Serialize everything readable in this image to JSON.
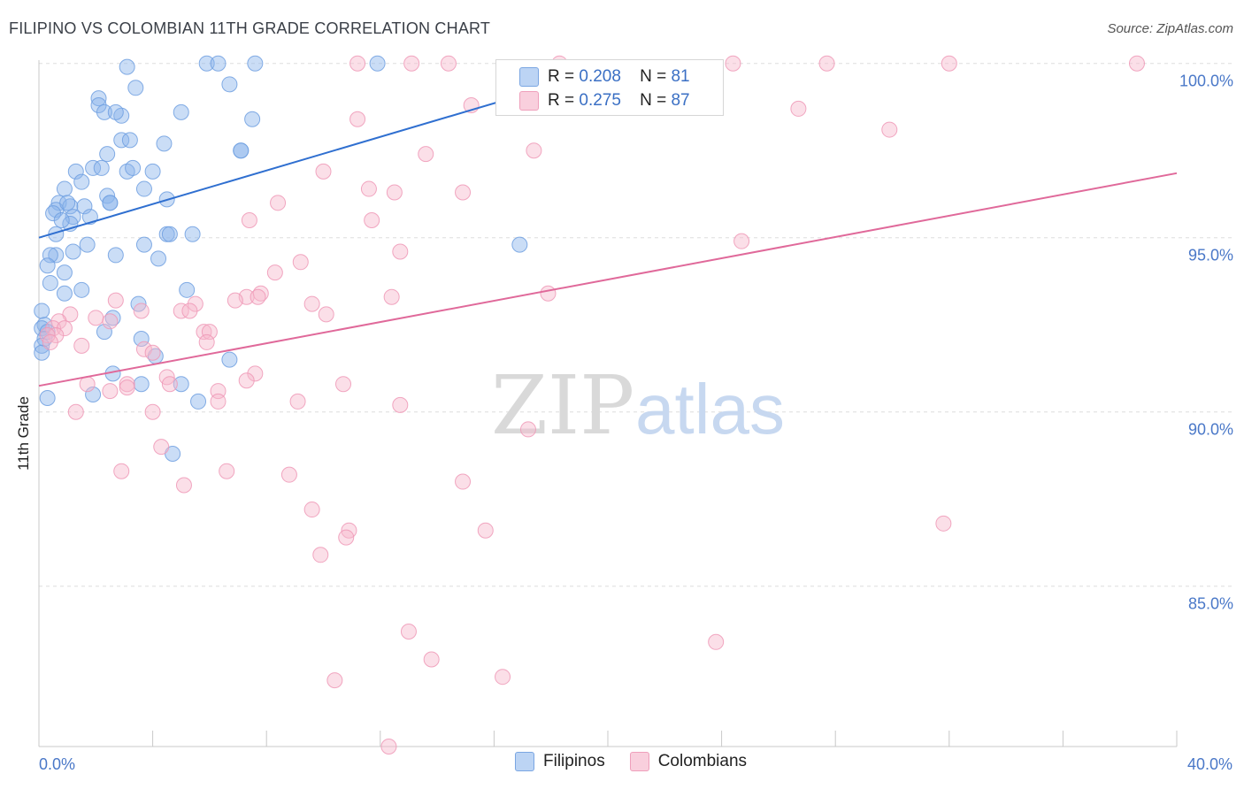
{
  "title": "FILIPINO VS COLOMBIAN 11TH GRADE CORRELATION CHART",
  "source": "Source: ZipAtlas.com",
  "watermark": {
    "zip": "ZIP",
    "atlas": "atlas"
  },
  "legend_top": {
    "rows": [
      {
        "r_label": "R =",
        "r_value": "0.208",
        "n_label": "N =",
        "n_value": "81"
      },
      {
        "r_label": "R =",
        "r_value": "0.275",
        "n_label": "N =",
        "n_value": "87"
      }
    ]
  },
  "chart_data": {
    "type": "scatter",
    "title": "FILIPINO VS COLOMBIAN 11TH GRADE CORRELATION CHART",
    "xlabel": "",
    "ylabel": "11th Grade",
    "xlim": [
      0,
      40
    ],
    "ylim": [
      80.4,
      100.5
    ],
    "x_tick_labels": [
      {
        "value": 0,
        "label": "0.0%"
      },
      {
        "value": 40,
        "label": "40.0%"
      }
    ],
    "y_ticks": [
      {
        "value": 100,
        "label": "100.0%"
      },
      {
        "value": 95,
        "label": "95.0%"
      },
      {
        "value": 90,
        "label": "90.0%"
      },
      {
        "value": 85,
        "label": "85.0%"
      }
    ],
    "grid": true,
    "legend_position": "top-center",
    "series": [
      {
        "name": "Filipinos",
        "color": "#8ab4ea",
        "stroke": "#6f9fe0",
        "line_color": "#2f6fd0",
        "trend": {
          "x": [
            0,
            19.5
          ],
          "y": [
            95.0,
            99.7
          ]
        },
        "points": [
          [
            3.1,
            99.9
          ],
          [
            5.9,
            100.0
          ],
          [
            7.6,
            100.0
          ],
          [
            11.9,
            100.0
          ],
          [
            3.4,
            99.3
          ],
          [
            6.7,
            99.4
          ],
          [
            2.1,
            99.0
          ],
          [
            2.1,
            98.8
          ],
          [
            2.3,
            98.6
          ],
          [
            5.0,
            98.6
          ],
          [
            7.5,
            98.4
          ],
          [
            2.9,
            98.5
          ],
          [
            2.9,
            97.8
          ],
          [
            3.2,
            97.8
          ],
          [
            4.4,
            97.7
          ],
          [
            7.1,
            97.5
          ],
          [
            1.9,
            97.0
          ],
          [
            2.2,
            97.0
          ],
          [
            3.1,
            96.9
          ],
          [
            4.0,
            96.9
          ],
          [
            1.3,
            96.9
          ],
          [
            2.4,
            97.4
          ],
          [
            1.5,
            96.6
          ],
          [
            0.9,
            96.4
          ],
          [
            3.7,
            96.4
          ],
          [
            2.4,
            96.2
          ],
          [
            2.5,
            96.0
          ],
          [
            4.5,
            96.1
          ],
          [
            0.7,
            96.0
          ],
          [
            1.1,
            95.9
          ],
          [
            1.6,
            95.9
          ],
          [
            0.6,
            95.8
          ],
          [
            0.5,
            95.7
          ],
          [
            1.2,
            95.6
          ],
          [
            1.8,
            95.6
          ],
          [
            1.1,
            95.4
          ],
          [
            0.6,
            95.1
          ],
          [
            4.5,
            95.1
          ],
          [
            5.4,
            95.1
          ],
          [
            3.7,
            94.8
          ],
          [
            1.7,
            94.8
          ],
          [
            1.2,
            94.6
          ],
          [
            0.6,
            94.5
          ],
          [
            2.7,
            94.5
          ],
          [
            4.2,
            94.4
          ],
          [
            0.4,
            94.5
          ],
          [
            0.3,
            94.2
          ],
          [
            0.9,
            94.0
          ],
          [
            0.4,
            93.7
          ],
          [
            1.5,
            93.5
          ],
          [
            0.9,
            93.4
          ],
          [
            5.2,
            93.5
          ],
          [
            3.5,
            93.1
          ],
          [
            0.1,
            92.9
          ],
          [
            2.6,
            92.7
          ],
          [
            3.6,
            92.1
          ],
          [
            2.3,
            92.3
          ],
          [
            0.2,
            92.5
          ],
          [
            0.1,
            92.4
          ],
          [
            0.3,
            92.3
          ],
          [
            0.2,
            92.1
          ],
          [
            0.1,
            91.9
          ],
          [
            0.1,
            91.7
          ],
          [
            4.1,
            91.6
          ],
          [
            6.7,
            91.5
          ],
          [
            2.6,
            91.1
          ],
          [
            3.6,
            90.8
          ],
          [
            5.0,
            90.8
          ],
          [
            1.9,
            90.5
          ],
          [
            0.3,
            90.4
          ],
          [
            5.6,
            90.3
          ],
          [
            4.7,
            88.8
          ],
          [
            16.9,
            94.8
          ],
          [
            7.1,
            97.5
          ],
          [
            3.3,
            97.0
          ],
          [
            1.0,
            96.0
          ],
          [
            2.5,
            96.0
          ],
          [
            4.6,
            95.1
          ],
          [
            6.3,
            100.0
          ],
          [
            0.8,
            95.5
          ],
          [
            2.7,
            98.6
          ]
        ]
      },
      {
        "name": "Colombians",
        "color": "#f6b8cd",
        "stroke": "#ee98b6",
        "line_color": "#e0699a",
        "trend": {
          "x": [
            0,
            40
          ],
          "y": [
            90.75,
            96.85
          ]
        },
        "points": [
          [
            11.2,
            100.0
          ],
          [
            13.1,
            100.0
          ],
          [
            14.4,
            100.0
          ],
          [
            18.3,
            100.0
          ],
          [
            24.4,
            100.0
          ],
          [
            27.7,
            100.0
          ],
          [
            32.0,
            100.0
          ],
          [
            38.6,
            100.0
          ],
          [
            15.2,
            98.8
          ],
          [
            11.2,
            98.4
          ],
          [
            26.7,
            98.7
          ],
          [
            29.9,
            98.1
          ],
          [
            17.4,
            97.5
          ],
          [
            13.6,
            97.4
          ],
          [
            10.0,
            96.9
          ],
          [
            11.6,
            96.4
          ],
          [
            12.5,
            96.3
          ],
          [
            14.9,
            96.3
          ],
          [
            8.4,
            96.0
          ],
          [
            11.7,
            95.5
          ],
          [
            7.4,
            95.5
          ],
          [
            24.7,
            94.9
          ],
          [
            12.7,
            94.6
          ],
          [
            9.2,
            94.3
          ],
          [
            8.3,
            94.0
          ],
          [
            17.9,
            93.4
          ],
          [
            12.4,
            93.3
          ],
          [
            7.3,
            93.3
          ],
          [
            7.8,
            93.4
          ],
          [
            7.7,
            93.3
          ],
          [
            6.9,
            93.2
          ],
          [
            2.7,
            93.2
          ],
          [
            9.6,
            93.1
          ],
          [
            5.5,
            93.1
          ],
          [
            3.6,
            92.9
          ],
          [
            5.0,
            92.9
          ],
          [
            5.3,
            92.9
          ],
          [
            10.1,
            92.8
          ],
          [
            1.1,
            92.8
          ],
          [
            2.0,
            92.7
          ],
          [
            0.7,
            92.6
          ],
          [
            0.5,
            92.4
          ],
          [
            0.9,
            92.4
          ],
          [
            2.5,
            92.6
          ],
          [
            5.8,
            92.3
          ],
          [
            6.0,
            92.3
          ],
          [
            0.6,
            92.2
          ],
          [
            0.3,
            92.2
          ],
          [
            0.4,
            92.0
          ],
          [
            1.5,
            91.9
          ],
          [
            5.9,
            92.0
          ],
          [
            3.7,
            91.8
          ],
          [
            4.0,
            91.7
          ],
          [
            7.6,
            91.1
          ],
          [
            4.5,
            91.0
          ],
          [
            4.6,
            90.8
          ],
          [
            1.7,
            90.8
          ],
          [
            3.1,
            90.8
          ],
          [
            7.3,
            90.9
          ],
          [
            10.7,
            90.8
          ],
          [
            6.3,
            90.6
          ],
          [
            2.5,
            90.6
          ],
          [
            3.1,
            90.7
          ],
          [
            9.1,
            90.3
          ],
          [
            6.3,
            90.3
          ],
          [
            12.7,
            90.2
          ],
          [
            4.0,
            90.0
          ],
          [
            1.3,
            90.0
          ],
          [
            17.2,
            89.5
          ],
          [
            4.3,
            89.0
          ],
          [
            2.9,
            88.3
          ],
          [
            6.6,
            88.3
          ],
          [
            8.8,
            88.2
          ],
          [
            14.9,
            88.0
          ],
          [
            5.1,
            87.9
          ],
          [
            9.6,
            87.2
          ],
          [
            15.7,
            86.6
          ],
          [
            10.9,
            86.6
          ],
          [
            10.8,
            86.4
          ],
          [
            9.9,
            85.9
          ],
          [
            31.8,
            86.8
          ],
          [
            13.0,
            83.7
          ],
          [
            23.8,
            83.4
          ],
          [
            13.8,
            82.9
          ],
          [
            16.3,
            82.4
          ],
          [
            10.4,
            82.3
          ],
          [
            12.3,
            80.4
          ]
        ]
      }
    ]
  }
}
